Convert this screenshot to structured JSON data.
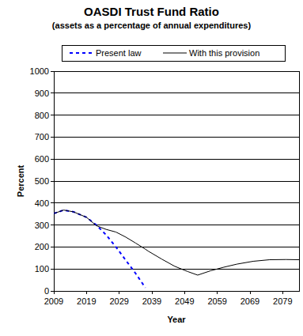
{
  "chart_data": {
    "type": "line",
    "title": "OASDI Trust Fund Ratio",
    "subtitle": "(assets as a percentage of annual expenditures)",
    "x_label": "Year",
    "y_label": "Percent",
    "x": [
      2009,
      2012,
      2015,
      2019,
      2022,
      2025,
      2028,
      2031,
      2034,
      2037,
      2038,
      2042,
      2046,
      2050,
      2053,
      2057,
      2061,
      2065,
      2070,
      2075,
      2080,
      2084
    ],
    "series": [
      {
        "name": "Present law",
        "color": "#0000ff",
        "line_style": "dashed",
        "values": [
          352,
          368,
          360,
          335,
          300,
          255,
          200,
          140,
          80,
          15,
          null,
          null,
          null,
          null,
          null,
          null,
          null,
          null,
          null,
          null,
          null,
          null
        ]
      },
      {
        "name": "With this provision",
        "color": "#000000",
        "line_style": "solid",
        "values": [
          352,
          368,
          360,
          335,
          297,
          280,
          268,
          245,
          218,
          190,
          180,
          145,
          112,
          88,
          72,
          92,
          108,
          122,
          135,
          142,
          143,
          142
        ]
      }
    ],
    "xlim": [
      2009,
      2084
    ],
    "xticks": [
      2009,
      2019,
      2029,
      2039,
      2049,
      2059,
      2069,
      2079
    ],
    "ylim": [
      0,
      1000
    ],
    "yticks": [
      0,
      100,
      200,
      300,
      400,
      500,
      600,
      700,
      800,
      900,
      1000
    ],
    "grid": true,
    "legend": "top"
  }
}
